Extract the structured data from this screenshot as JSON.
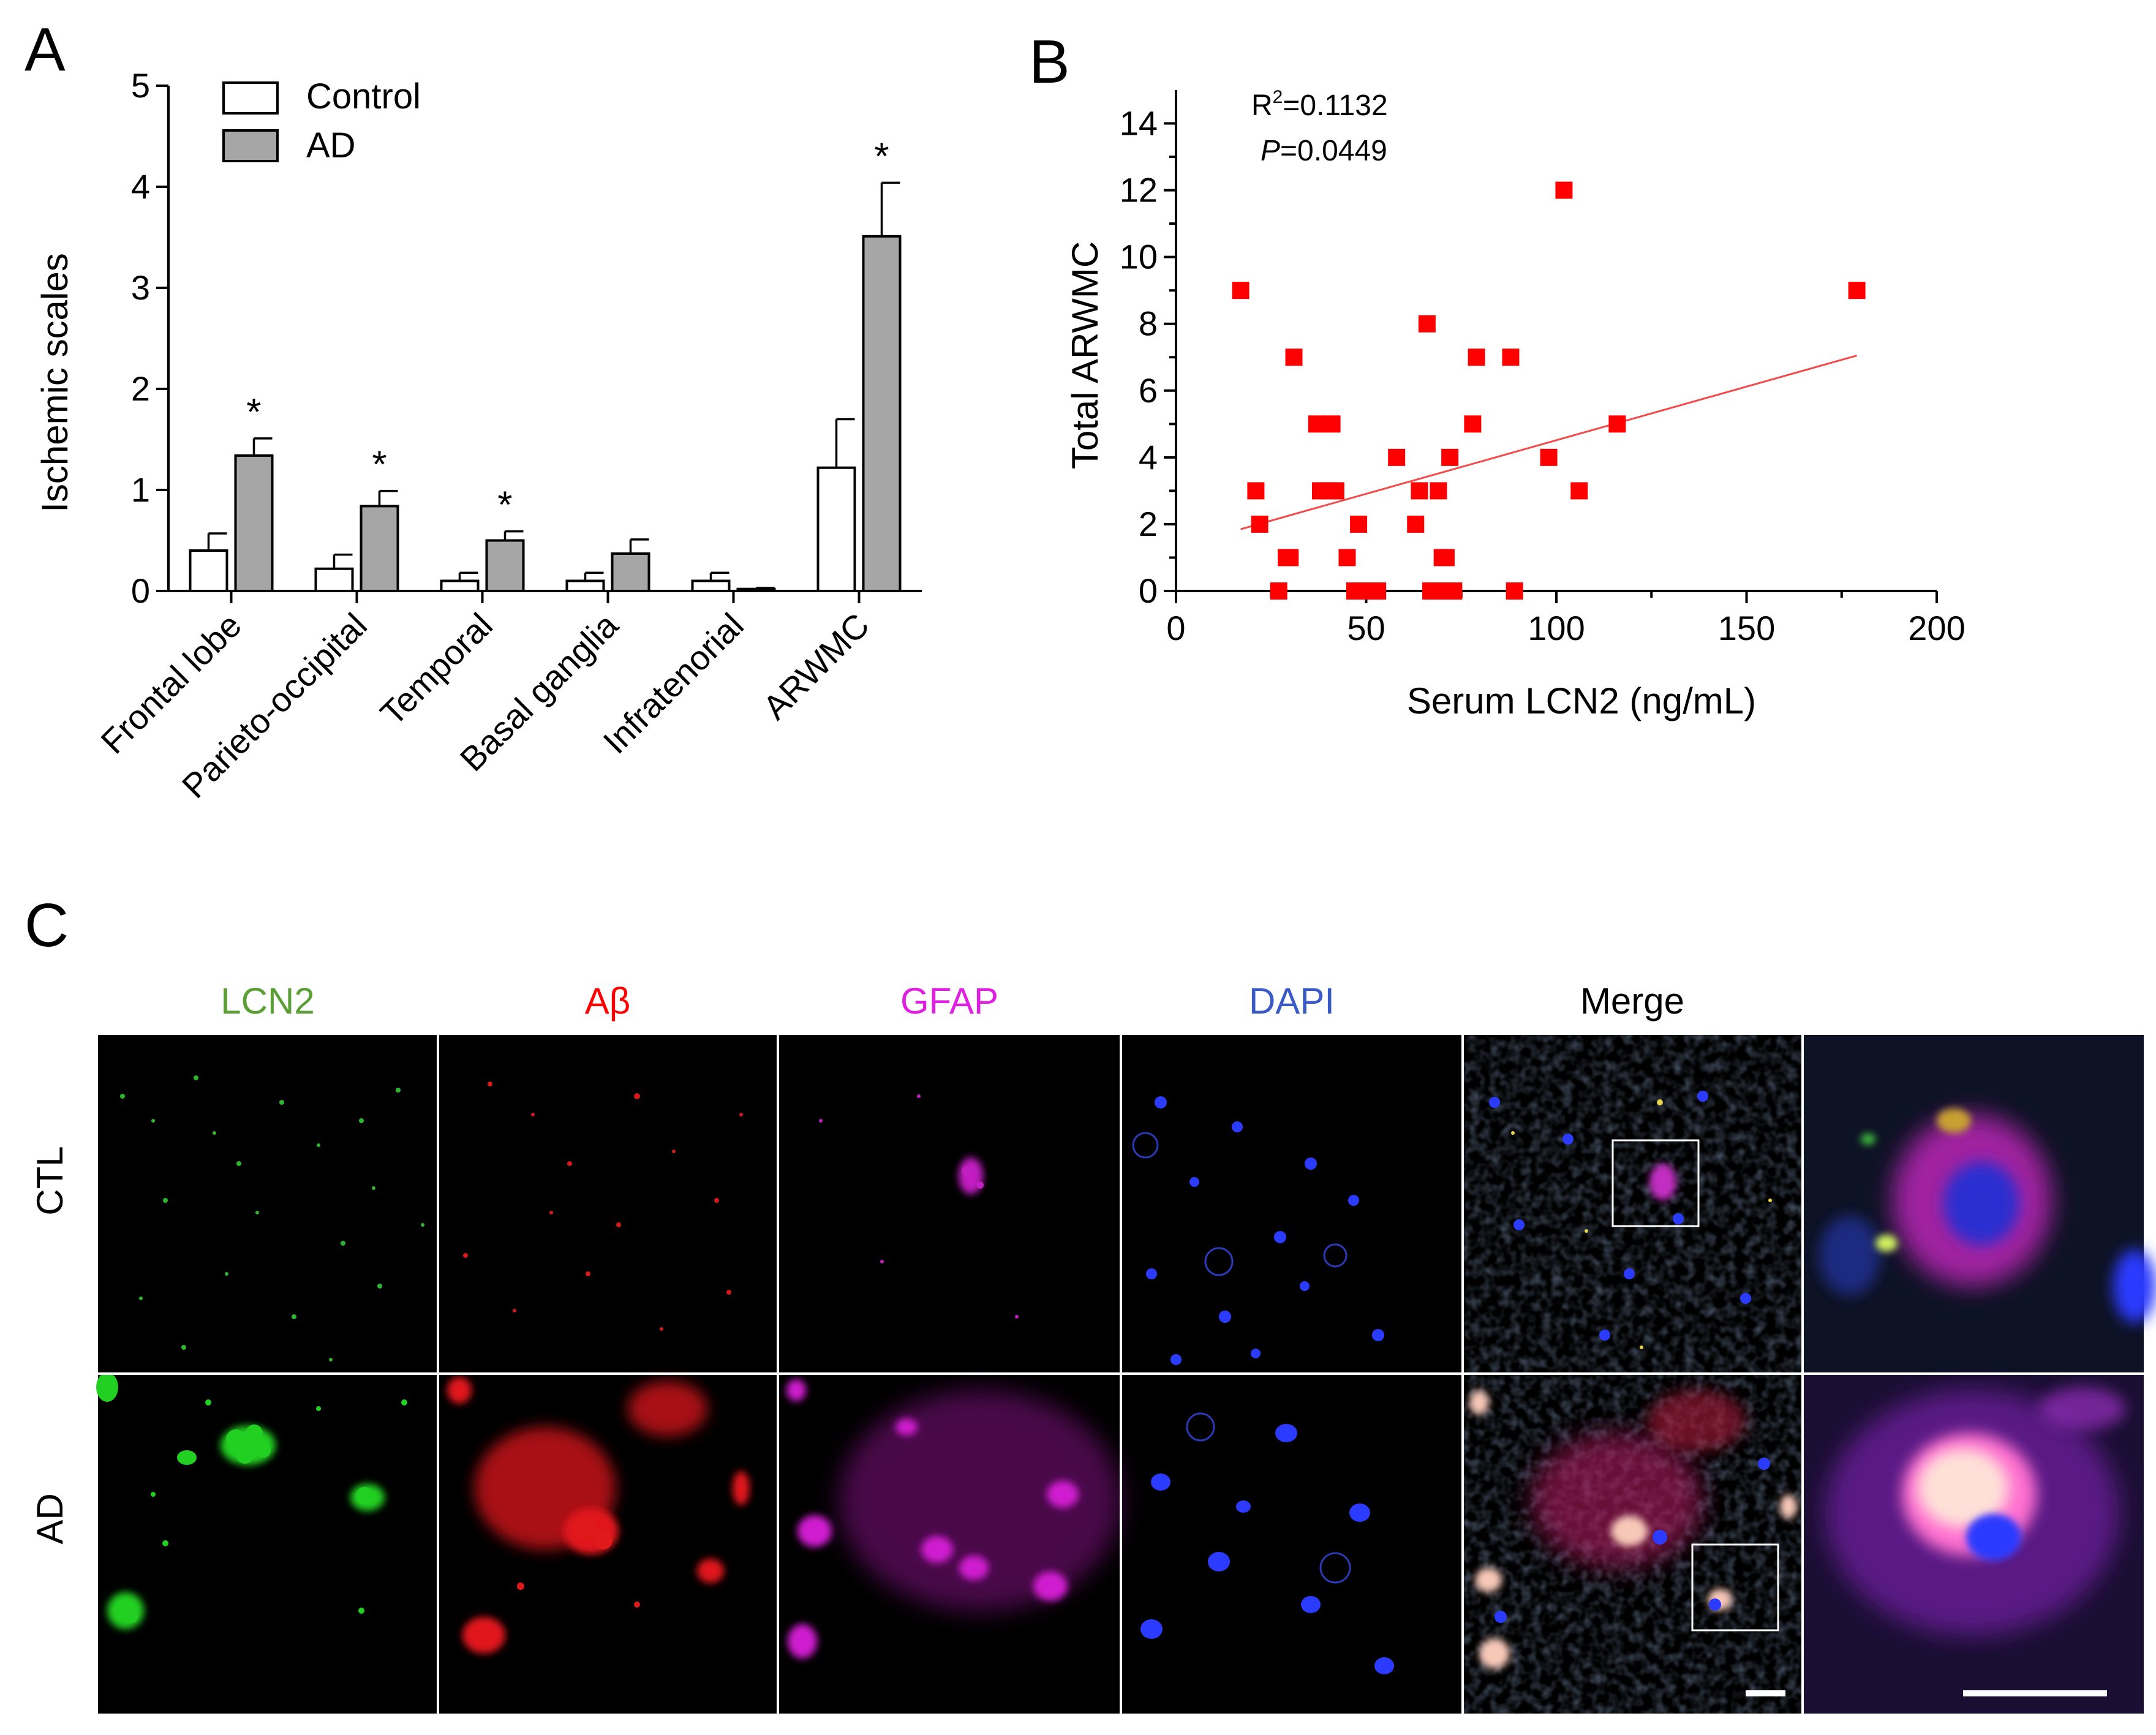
{
  "panels": {
    "a": "A",
    "b": "B",
    "c": "C"
  },
  "chart_data": [
    {
      "type": "bar",
      "panel": "A",
      "ylabel": "Ischemic scales",
      "ylim": [
        0,
        5
      ],
      "yticks": [
        0,
        1,
        2,
        3,
        4,
        5
      ],
      "categories": [
        "Frontal lobe",
        "Parieto-occipital",
        "Temporal",
        "Basal ganglia",
        "Infratenorial",
        "ARWMC"
      ],
      "series": [
        {
          "name": "Control",
          "values": [
            0.4,
            0.22,
            0.1,
            0.1,
            0.1,
            1.22
          ],
          "errors": [
            0.17,
            0.14,
            0.08,
            0.08,
            0.08,
            0.48
          ],
          "color": "#ffffff"
        },
        {
          "name": "AD",
          "values": [
            1.34,
            0.84,
            0.5,
            0.37,
            0.02,
            3.51
          ],
          "errors": [
            0.17,
            0.15,
            0.09,
            0.14,
            0.01,
            0.53
          ],
          "color": "#a6a6a6"
        }
      ],
      "significance": [
        "*",
        "*",
        "*",
        "",
        "",
        "*"
      ],
      "legend": "top-left"
    },
    {
      "type": "scatter",
      "panel": "B",
      "xlabel": "Serum LCN2 (ng/mL)",
      "ylabel": "Total ARWMC",
      "xlim": [
        0,
        200
      ],
      "ylim": [
        0,
        15
      ],
      "xticks": [
        0,
        50,
        100,
        150,
        200
      ],
      "yticks": [
        0,
        2,
        4,
        6,
        8,
        10,
        12,
        14
      ],
      "r2_prefix": "R",
      "r2_sup": "2",
      "r2_value": "=0.1132",
      "p_label": "P",
      "p_value": "=0.0449",
      "marker_color": "#ff0000",
      "fit_line": {
        "x": [
          17,
          179
        ],
        "y": [
          1.85,
          7.05
        ],
        "color": "#f24a4a"
      },
      "points": [
        [
          17,
          9
        ],
        [
          21,
          3
        ],
        [
          22,
          2
        ],
        [
          27,
          0
        ],
        [
          29,
          1
        ],
        [
          30,
          1
        ],
        [
          31,
          7
        ],
        [
          37,
          5
        ],
        [
          38,
          3
        ],
        [
          40,
          3
        ],
        [
          41,
          5
        ],
        [
          42,
          3
        ],
        [
          45,
          1
        ],
        [
          47,
          0
        ],
        [
          48,
          2
        ],
        [
          51,
          0
        ],
        [
          53,
          0
        ],
        [
          58,
          4
        ],
        [
          63,
          2
        ],
        [
          64,
          3
        ],
        [
          66,
          8
        ],
        [
          67,
          0
        ],
        [
          68,
          0
        ],
        [
          69,
          3
        ],
        [
          70,
          1
        ],
        [
          70,
          0
        ],
        [
          71,
          1
        ],
        [
          72,
          4
        ],
        [
          73,
          0
        ],
        [
          78,
          5
        ],
        [
          79,
          7
        ],
        [
          88,
          7
        ],
        [
          89,
          0
        ],
        [
          98,
          4
        ],
        [
          102,
          12
        ],
        [
          106,
          3
        ],
        [
          116,
          5
        ],
        [
          179,
          9
        ]
      ]
    }
  ],
  "micrograph": {
    "channels": [
      {
        "label": "LCN2",
        "color": "#5a9e34"
      },
      {
        "label": "Aβ",
        "color": "#ff0000"
      },
      {
        "label": "GFAP",
        "color": "#e020e0"
      },
      {
        "label": "DAPI",
        "color": "#3a5bc7"
      },
      {
        "label": "Merge",
        "color": "#000000"
      }
    ],
    "rows": [
      "CTL",
      "AD"
    ]
  }
}
